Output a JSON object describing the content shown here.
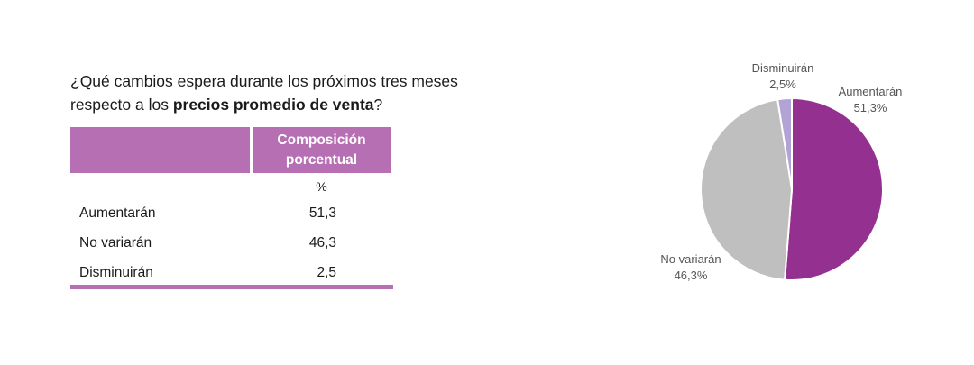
{
  "question": {
    "prefix": "¿Qué cambios espera durante los próximos tres meses respecto a los ",
    "bold": "precios promedio de venta",
    "suffix": "?"
  },
  "table": {
    "header_line1": "Composición",
    "header_line2": "porcentual",
    "unit": "%",
    "rows": [
      {
        "label": "Aumentarán",
        "value": "51,3"
      },
      {
        "label": "No variarán",
        "value": "46,3"
      },
      {
        "label": "Disminuirán",
        "value": "2,5"
      }
    ]
  },
  "chart_data": {
    "type": "pie",
    "title": "",
    "slices": [
      {
        "label": "Aumentarán",
        "value": 51.3,
        "value_label": "51,3%",
        "color": "#94308f"
      },
      {
        "label": "No variarán",
        "value": 46.3,
        "value_label": "46,3%",
        "color": "#bfbfbf"
      },
      {
        "label": "Disminuirán",
        "value": 2.5,
        "value_label": "2,5%",
        "color": "#b3a2d6"
      }
    ],
    "start": "12 o'clock",
    "direction": "clockwise"
  }
}
